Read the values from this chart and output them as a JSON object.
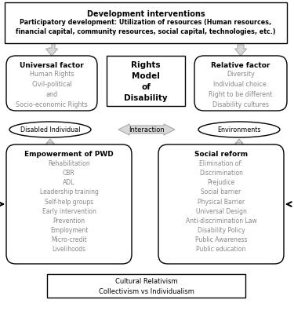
{
  "title_box": {
    "title": "Development interventions",
    "subtitle": "Participatory development: Utilization of resources (Human resources,\nfinancial capital, community resources, social capital, technologies, etc.)"
  },
  "center_box": {
    "text": "Rights\nModel\nof\nDisability"
  },
  "universal_box": {
    "title": "Universal factor",
    "lines": [
      "Human Rights",
      "Civil-political",
      "and",
      "Socio-economic Rights"
    ]
  },
  "relative_box": {
    "title": "Relative factor",
    "lines": [
      "Diversity",
      "Individual choice.",
      "Right to be different",
      "Disability cultures"
    ]
  },
  "disabled_individual": "Disabled Individual",
  "environments": "Environments",
  "interaction": "Interaction",
  "empowerment_box": {
    "title": "Empowerment of PWD",
    "lines": [
      "Rehabilitation",
      "CBR",
      "ADL",
      "Leadership training",
      "Self-help groups",
      "Early intervention",
      "Prevention",
      "Employment",
      "Micro-credit",
      "Livelihoods"
    ]
  },
  "social_reform_box": {
    "title": "Social reform",
    "lines": [
      "Elimination of:",
      "Discrimination",
      "Prejudice",
      "Social barrier",
      "Physical Barrier",
      "Universal Design",
      "Anti-discrimination Law",
      "Disability Policy",
      "Public Awareness",
      "Public education"
    ]
  },
  "bottom_box": {
    "lines": [
      "Cultural Relativism",
      "Collectivism vs Individualism"
    ]
  },
  "bg_color": "#ffffff",
  "arrow_fill": "#d8d8d8",
  "arrow_edge": "#aaaaaa",
  "text_color": "#000000",
  "gray_text_color": "#888888",
  "fig_w": 3.75,
  "fig_h": 4.06,
  "dpi": 100
}
